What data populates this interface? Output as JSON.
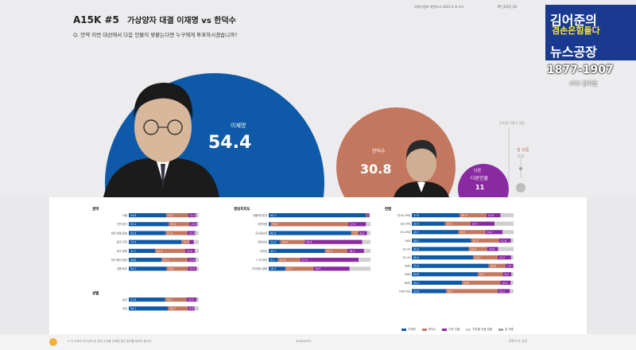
{
  "header": {
    "code": "A15K #5",
    "title": "가상양자 대결 이재명 vs 한덕수",
    "question": "Q. 만약 이번 대선에서 다음 인물이 맞붙는다면 누구에게 투표하시겠습니까?",
    "meta_left": "의뢰자정보 여론조사 2025.4 보고서",
    "meta_right": "PP_2025_04"
  },
  "branding": {
    "line1": "김어준의",
    "line2": "겸손은힘들다",
    "line3": "뉴스공장",
    "phone": "1877-1907",
    "sub": "ARS 참여문"
  },
  "footer": {
    "note": "※ 이 자료의 조사결과 및 통계 수치를 인용할 경우 출처를 밝혀야 합니다",
    "center": "ARSBADGE",
    "right": "여론조사 공장"
  },
  "colors": {
    "lee": "#0f5aa8",
    "han": "#c4775f",
    "other": "#8a2aa3",
    "undecided": "#cfcfcf",
    "dontknow": "#a3a3a3"
  },
  "chart_data": [
    {
      "type": "pie",
      "categories": [
        "이재명",
        "한덕수",
        "다른 인물",
        "투표할 인물 없음",
        "잘 모름"
      ],
      "values": [
        54.4,
        30.8,
        11.0,
        null,
        0.9
      ],
      "labels": [
        "이재명",
        "한덕수",
        "다른인물",
        "투표할 인물이 없음",
        "잘 모름"
      ]
    },
    {
      "type": "bar",
      "stacked": true,
      "title": "권역",
      "categories": [
        "서울",
        "인천·경기",
        "대전·세종·충청",
        "광주·전라",
        "대구·경북",
        "부산·울산·경남",
        "강원·제주"
      ],
      "series": [
        {
          "name": "이재명",
          "values": [
            53.6,
            57.2,
            52.6,
            75.4,
            37.7,
            46.8,
            54.1
          ]
        },
        {
          "name": "한덕수",
          "values": [
            31.2,
            29.4,
            31.3,
            11.3,
            42.9,
            37.3,
            30.4
          ]
        },
        {
          "name": "다른 인물",
          "values": [
            11.4,
            11.0,
            11.0,
            6.3,
            14.0,
            11.5,
            12.5
          ]
        }
      ]
    },
    {
      "type": "bar",
      "stacked": true,
      "title": "성별",
      "categories": [
        "남성",
        "여성"
      ],
      "series": [
        {
          "name": "이재명",
          "values": [
            51.8,
            56.1
          ]
        },
        {
          "name": "한덕수",
          "values": [
            30.7,
            28.3
          ]
        },
        {
          "name": "다른 인물",
          "values": [
            14.5,
            9.6
          ]
        }
      ]
    },
    {
      "type": "bar",
      "stacked": true,
      "title": "정당지지도",
      "categories": [
        "더불어민주당",
        "국민의힘",
        "조국혁신당",
        "개혁신당",
        "진보당",
        "그 외 정당",
        "지지정당 없음"
      ],
      "series": [
        {
          "name": "이재명",
          "values": [
            95.7,
            1.8,
            80.9,
            11.4,
            55.1,
            9.1,
            16.3
          ]
        },
        {
          "name": "한덕수",
          "values": [
            1.2,
            76.3,
            7.5,
            24.0,
            22.3,
            21.9,
            27.7
          ]
        },
        {
          "name": "다른 인물",
          "values": [
            1.8,
            17.5,
            8.2,
            56.4,
            16.2,
            57.4,
            35.5
          ]
        }
      ]
    },
    {
      "type": "bar",
      "stacked": true,
      "title": "연령",
      "categories": [
        "만18-29세",
        "18-24세",
        "25-29세",
        "30대",
        "30-34",
        "35-39",
        "40대",
        "50대",
        "60대",
        "70세 이상"
      ],
      "series": [
        {
          "name": "이재명",
          "values": [
            47.0,
            32.5,
            45.7,
            58.2,
            55.9,
            60.4,
            75.4,
            64.8,
            49.3,
            33.6
          ]
        },
        {
          "name": "한덕수",
          "values": [
            26.3,
            25.1,
            26.7,
            27.5,
            18.3,
            24.0,
            16.6,
            24.7,
            37.8,
            50.7
          ]
        },
        {
          "name": "다른 인물",
          "values": [
            13.9,
            23.7,
            16.7,
            11.6,
            10.6,
            13.2,
            7.8,
            8.4,
            10.1,
            12.1
          ]
        }
      ]
    }
  ],
  "legend": [
    "이재명",
    "한덕수",
    "다른 인물",
    "투표할 인물 없음",
    "잘 모름"
  ]
}
